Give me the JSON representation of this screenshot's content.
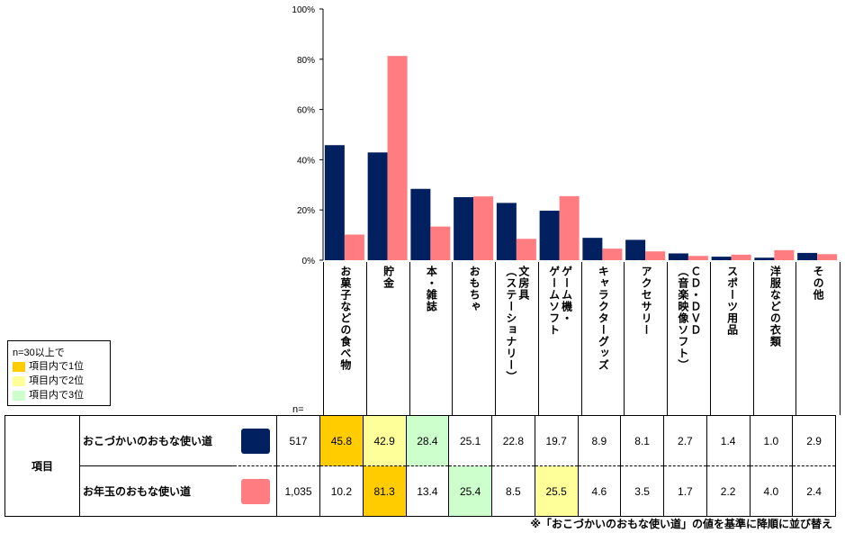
{
  "chart_data": {
    "type": "bar",
    "y_ticks": [
      "100%",
      "80%",
      "60%",
      "40%",
      "20%",
      "0%"
    ],
    "ylim": [
      0,
      100
    ],
    "categories": [
      "お菓子などの食べ物",
      "貯金",
      "本・雑誌",
      "おもちゃ",
      "文房具（ステーショナリー）",
      "ゲーム機・ゲームソフト",
      "キャラクターグッズ",
      "アクセサリー",
      "ＣＤ・ＤＶＤ（音楽映像ソフト）",
      "スポーツ用品",
      "洋服などの衣類",
      "その他"
    ],
    "category_labels": [
      "お菓子などの食べ物",
      "貯金",
      "本・雑誌",
      "おもちゃ",
      "文房具\n（ステーショナリー）",
      "ゲーム機・\nゲームソフト",
      "キャラクターグッズ",
      "アクセサリー",
      "ＣＤ・ＤＶＤ\n（音楽映像ソフト）",
      "スポーツ用品",
      "洋服などの衣類",
      "その他"
    ],
    "series": [
      {
        "name": "おこづかいのおもな使い道",
        "n": "517",
        "color": "#002060",
        "values": [
          45.8,
          42.9,
          28.4,
          25.1,
          22.8,
          19.7,
          8.9,
          8.1,
          2.7,
          1.4,
          1.0,
          2.9
        ],
        "labels": [
          "45.8",
          "42.9",
          "28.4",
          "25.1",
          "22.8",
          "19.7",
          "8.9",
          "8.1",
          "2.7",
          "1.4",
          "1.0",
          "2.9"
        ],
        "highlight": [
          1,
          2,
          3,
          0,
          0,
          0,
          0,
          0,
          0,
          0,
          0,
          0
        ]
      },
      {
        "name": "お年玉のおもな使い道",
        "n": "1,035",
        "color": "#FF7C80",
        "values": [
          10.2,
          81.3,
          13.4,
          25.4,
          8.5,
          25.5,
          4.6,
          3.5,
          1.7,
          2.2,
          4.0,
          2.4
        ],
        "labels": [
          "10.2",
          "81.3",
          "13.4",
          "25.4",
          "8.5",
          "25.5",
          "4.6",
          "3.5",
          "1.7",
          "2.2",
          "4.0",
          "2.4"
        ],
        "highlight": [
          0,
          1,
          0,
          3,
          0,
          2,
          0,
          0,
          0,
          0,
          0,
          0
        ]
      }
    ],
    "rank_colors": {
      "1": "#FFCC00",
      "2": "#FFFF99",
      "3": "#CCFFCC"
    }
  },
  "table": {
    "row_header": "項目",
    "n_label": "n="
  },
  "legend": {
    "title": "n=30以上で",
    "items": [
      "項目内で1位",
      "項目内で2位",
      "項目内で3位"
    ]
  },
  "footnote": "※「おこづかいのおもな使い道」の値を基準に降順に並び替え"
}
